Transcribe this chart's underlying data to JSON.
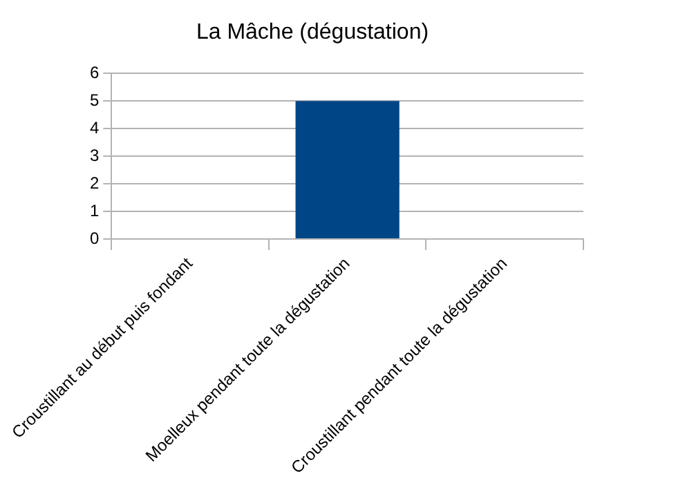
{
  "chart_data": {
    "type": "bar",
    "title": "La Mâche (dégustation)",
    "categories": [
      "Croustillant au début puis fondant",
      "Moelleux pendant toute la dégustation",
      "Croustillant pendant toute la dégustation"
    ],
    "values": [
      0,
      5,
      0
    ],
    "color": "#004586",
    "ylim": [
      0,
      6
    ],
    "yticks": [
      0,
      1,
      2,
      3,
      4,
      5,
      6
    ],
    "grid": "y",
    "legend": false
  }
}
